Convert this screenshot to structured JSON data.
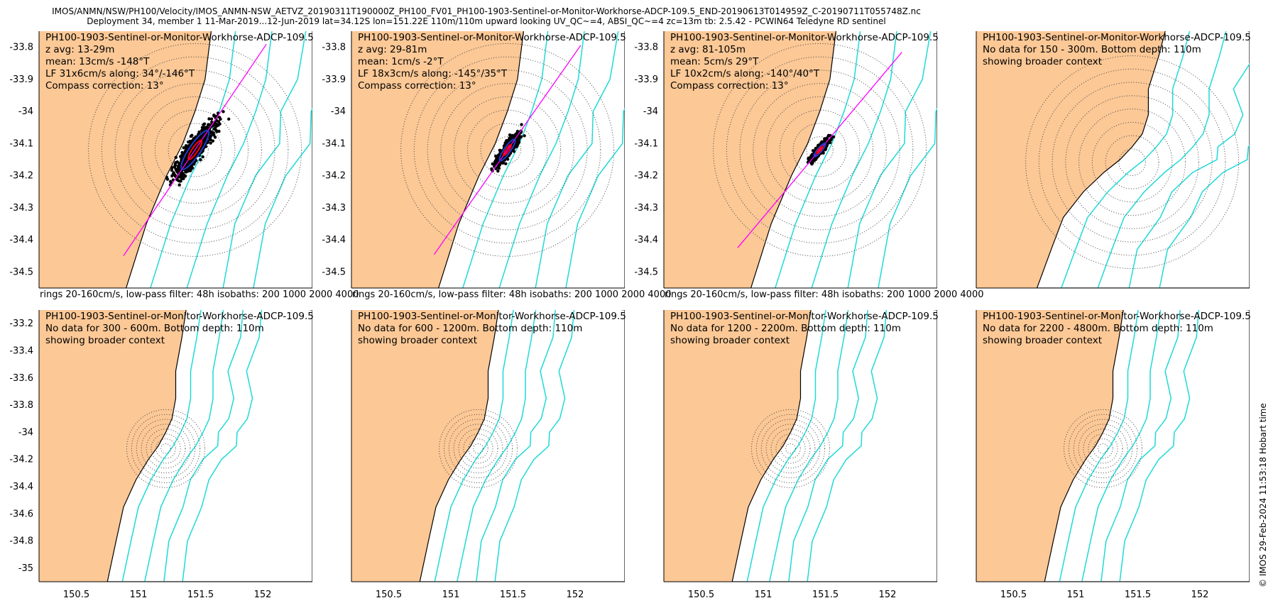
{
  "figure": {
    "title_line1": "IMOS/ANMN/NSW/PH100/Velocity/IMOS_ANMN-NSW_AETVZ_20190311T190000Z_PH100_FV01_PH100-1903-Sentinel-or-Monitor-Workhorse-ADCP-109.5_END-20190613T014959Z_C-20190711T055748Z.nc",
    "title_line2": "Deployment 34, member 1 11-Mar-2019...12-Jun-2019 lat=34.12S lon=151.22E 110m/110m upward looking UV_QC~=4, ABSI_QC~=4 zc=13m tb: 2.5.42 - PCWIN64 Teledyne RD sentinel",
    "credit": "© IMOS 29-Feb-2024 11:53:18 Hobart time",
    "colors": {
      "land": "#fbc896",
      "isobath": "#1fd9d9",
      "scatter": "#000000",
      "axis_line": "#ff00ff",
      "ellipse_lf": "#1f3ccc",
      "ellipse_mean": "#ff0000"
    }
  },
  "rows": [
    {
      "ylabels": [
        "-33.8",
        "-33.9",
        "-34",
        "-34.1",
        "-34.2",
        "-34.3",
        "-34.4",
        "-34.5"
      ],
      "panels": [
        {
          "lines": [
            "PH100-1903-Sentinel-or-Monitor-Workhorse-ADCP-109.5",
            "z avg: 13-29m",
            "mean: 13cm/s -148°T",
            "LF 31x6cm/s along: 34°/-146°T",
            "Compass correction: 13°"
          ],
          "footer": "rings 20-160cm/s, low-pass filter: 48h isobaths: 200 1000 2000 4000"
        },
        {
          "lines": [
            "PH100-1903-Sentinel-or-Monitor-Workhorse-ADCP-109.5",
            "z avg: 29-81m",
            "mean: 1cm/s -2°T",
            "LF 18x3cm/s along: -145°/35°T",
            "Compass correction: 13°"
          ],
          "footer": "rings 20-160cm/s, low-pass filter: 48h isobaths: 200 1000 2000 4000"
        },
        {
          "lines": [
            "PH100-1903-Sentinel-or-Monitor-Workhorse-ADCP-109.5",
            "z avg: 81-105m",
            "mean: 5cm/s 29°T",
            "LF 10x2cm/s along: -140°/40°T",
            "Compass correction: 13°"
          ],
          "footer": "rings 20-160cm/s, low-pass filter: 48h isobaths: 200 1000 2000 4000"
        },
        {
          "lines": [
            "PH100-1903-Sentinel-or-Monitor-Workhorse-ADCP-109.5",
            "No data for 150 - 300m. Bottom depth: 110m",
            "showing broader context"
          ],
          "footer": ""
        }
      ]
    },
    {
      "ylabels": [
        "-33.2",
        "-33.4",
        "-33.6",
        "-33.8",
        "-34",
        "-34.2",
        "-34.4",
        "-34.6",
        "-34.8",
        "-35"
      ],
      "panels": [
        {
          "lines": [
            "PH100-1903-Sentinel-or-Monitor-Workhorse-ADCP-109.5",
            "No data for 300 - 600m. Bottom depth: 110m",
            "showing broader context"
          ],
          "footer": ""
        },
        {
          "lines": [
            "PH100-1903-Sentinel-or-Monitor-Workhorse-ADCP-109.5",
            "No data for 600 - 1200m. Bottom depth: 110m",
            "showing broader context"
          ],
          "footer": ""
        },
        {
          "lines": [
            "PH100-1903-Sentinel-or-Monitor-Workhorse-ADCP-109.5",
            "No data for 1200 - 2200m. Bottom depth: 110m",
            "showing broader context"
          ],
          "footer": ""
        },
        {
          "lines": [
            "PH100-1903-Sentinel-or-Monitor-Workhorse-ADCP-109.5",
            "No data for 2200 - 4800m. Bottom depth: 110m",
            "showing broader context"
          ],
          "footer": ""
        }
      ]
    }
  ],
  "xticks": [
    "150.5",
    "151",
    "151.5",
    "152"
  ],
  "chart_data": [
    {
      "type": "scatter",
      "panel": "top-1",
      "ylim": [
        -34.55,
        -33.75
      ],
      "yticks": [
        -33.8,
        -33.9,
        -34,
        -34.1,
        -34.2,
        -34.3,
        -34.4,
        -34.5
      ],
      "mooring": [
        151.22,
        -34.12
      ],
      "rings_cm_s": [
        20,
        40,
        60,
        80,
        100,
        120,
        140,
        160
      ],
      "principal_axis_deg": 34,
      "spread": 0.16
    },
    {
      "type": "scatter",
      "panel": "top-2",
      "ylim": [
        -34.55,
        -33.75
      ],
      "yticks": [
        -33.8,
        -33.9,
        -34,
        -34.1,
        -34.2,
        -34.3,
        -34.4,
        -34.5
      ],
      "mooring": [
        151.22,
        -34.12
      ],
      "rings_cm_s": [
        20,
        40,
        60,
        80,
        100,
        120,
        140,
        160
      ],
      "principal_axis_deg": 35,
      "spread": 0.09
    },
    {
      "type": "scatter",
      "panel": "top-3",
      "ylim": [
        -34.55,
        -33.75
      ],
      "yticks": [
        -33.8,
        -33.9,
        -34,
        -34.1,
        -34.2,
        -34.3,
        -34.4,
        -34.5
      ],
      "mooring": [
        151.22,
        -34.12
      ],
      "rings_cm_s": [
        20,
        40,
        60,
        80,
        100,
        120,
        140,
        160
      ],
      "principal_axis_deg": 40,
      "spread": 0.06
    },
    {
      "type": "scatter",
      "panel": "top-4",
      "ylim": [
        -35.1,
        -33.1
      ],
      "yticks": [],
      "mooring": [
        151.22,
        -34.12
      ],
      "rings_cm_s": [
        20,
        40,
        60,
        80,
        100,
        120,
        140,
        160
      ],
      "note": "no data"
    },
    {
      "type": "scatter",
      "panel": "bottom-1",
      "ylim": [
        -35.1,
        -33.1
      ],
      "yticks": [
        -33.2,
        -33.4,
        -33.6,
        -33.8,
        -34,
        -34.2,
        -34.4,
        -34.6,
        -34.8,
        -35
      ],
      "mooring": [
        151.22,
        -34.12
      ],
      "note": "no data"
    },
    {
      "type": "scatter",
      "panel": "bottom-2",
      "ylim": [
        -35.1,
        -33.1
      ],
      "yticks": [],
      "mooring": [
        151.22,
        -34.12
      ],
      "note": "no data"
    },
    {
      "type": "scatter",
      "panel": "bottom-3",
      "ylim": [
        -35.1,
        -33.1
      ],
      "yticks": [],
      "mooring": [
        151.22,
        -34.12
      ],
      "note": "no data"
    },
    {
      "type": "scatter",
      "panel": "bottom-4",
      "ylim": [
        -35.1,
        -33.1
      ],
      "yticks": [],
      "mooring": [
        151.22,
        -34.12
      ],
      "note": "no data"
    }
  ]
}
